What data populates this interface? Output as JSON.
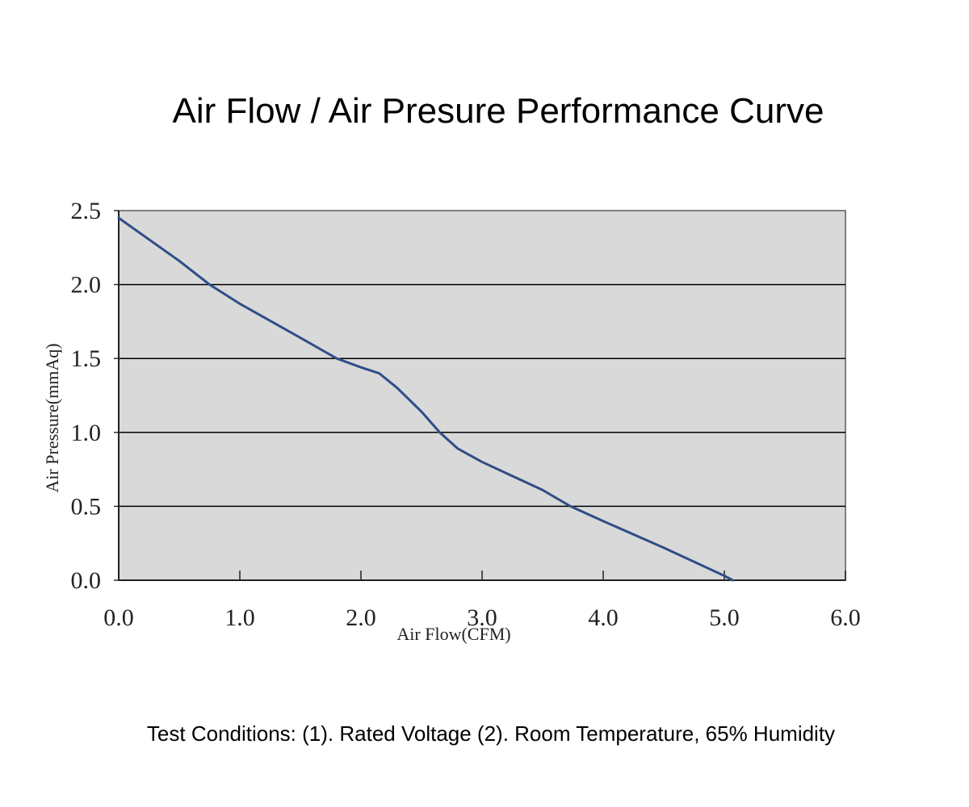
{
  "chart_data": {
    "type": "line",
    "title": "Air Flow / Air Presure Performance Curve",
    "x_label": "Air Flow(CFM)",
    "y_label": "Air Pressure(mmAq)",
    "footnote": "Test Conditions:  (1). Rated Voltage (2). Room Temperature, 65% Humidity",
    "x": [
      0,
      0.5,
      0.75,
      1.0,
      1.5,
      1.8,
      2.0,
      2.15,
      2.3,
      2.5,
      2.65,
      2.8,
      3.0,
      3.5,
      3.73,
      4.0,
      4.5,
      5.0,
      5.07
    ],
    "series": [
      {
        "name": "Air Pressure",
        "color": "#2e4e87",
        "values": [
          2.45,
          2.16,
          2.0,
          1.87,
          1.64,
          1.5,
          1.44,
          1.4,
          1.3,
          1.14,
          1.0,
          0.89,
          0.8,
          0.61,
          0.5,
          0.4,
          0.22,
          0.03,
          0
        ]
      }
    ],
    "xlim": [
      0,
      6
    ],
    "ylim": [
      0,
      2.5
    ],
    "xticks": [
      {
        "value": 0,
        "label": "0.0"
      },
      {
        "value": 1,
        "label": "1.0"
      },
      {
        "value": 2,
        "label": "2.0"
      },
      {
        "value": 3,
        "label": "3.0"
      },
      {
        "value": 4,
        "label": "4.0"
      },
      {
        "value": 5,
        "label": "5.0"
      },
      {
        "value": 6,
        "label": "6.0"
      }
    ],
    "yticks": [
      {
        "value": 0,
        "label": "0.0"
      },
      0.5,
      {
        "value": 1,
        "label": "1.0"
      },
      1.5,
      {
        "value": 2,
        "label": "2.0"
      },
      2.5
    ],
    "grid": true
  }
}
